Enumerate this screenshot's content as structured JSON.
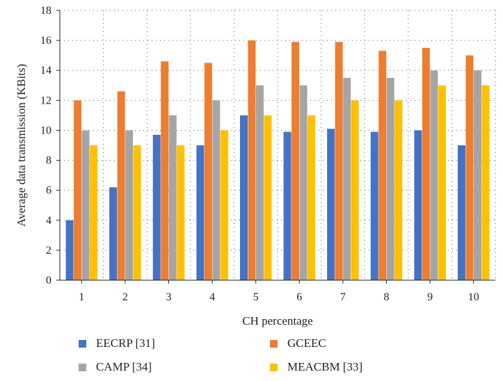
{
  "chart_data": {
    "type": "bar",
    "xlabel": "CH percentage",
    "ylabel": "Average data transmission (KBits)",
    "ylim": [
      0,
      18
    ],
    "yticks": [
      0,
      2,
      4,
      6,
      8,
      10,
      12,
      14,
      16,
      18
    ],
    "categories": [
      "1",
      "2",
      "3",
      "4",
      "5",
      "6",
      "7",
      "8",
      "9",
      "10"
    ],
    "grid": true,
    "legend_position": "bottom",
    "series": [
      {
        "name": "EECRP [31]",
        "color": "#4472c4",
        "values": [
          4,
          6.2,
          9.7,
          9,
          11,
          9.9,
          10.1,
          9.9,
          10,
          9
        ]
      },
      {
        "name": "GCEEC",
        "color": "#ed7d31",
        "values": [
          12,
          12.6,
          14.6,
          14.5,
          16,
          15.9,
          15.9,
          15.3,
          15.5,
          15
        ]
      },
      {
        "name": "CAMP [34]",
        "color": "#a5a5a5",
        "values": [
          10,
          10,
          11,
          12,
          13,
          13,
          13.5,
          13.5,
          14,
          14
        ]
      },
      {
        "name": "MEACBM [33]",
        "color": "#ffc000",
        "values": [
          9,
          9,
          9,
          10,
          11,
          11,
          12,
          12,
          13,
          13
        ]
      }
    ]
  }
}
